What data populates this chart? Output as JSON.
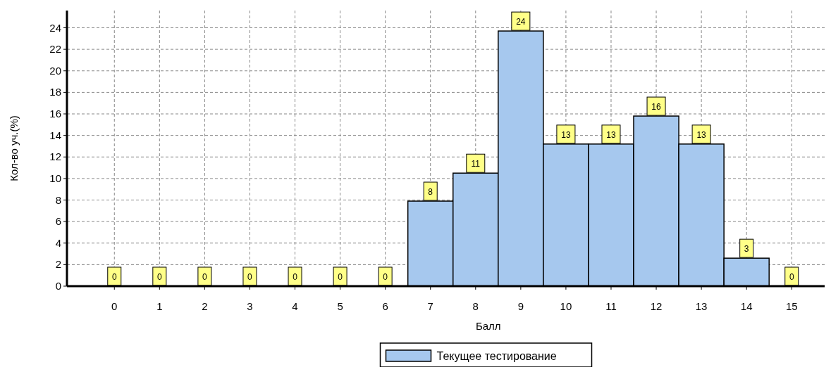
{
  "chart_data": {
    "type": "bar",
    "xlabel": "Балл",
    "ylabel": "Кол-во уч.(%)",
    "categories": [
      "0",
      "1",
      "2",
      "3",
      "4",
      "5",
      "6",
      "7",
      "8",
      "9",
      "10",
      "11",
      "12",
      "13",
      "14",
      "15"
    ],
    "series": [
      {
        "name": "Текущее тестирование",
        "color": "#a6c8ee",
        "values": [
          0,
          0,
          0,
          0,
          0,
          0,
          0,
          7.9,
          10.5,
          23.7,
          13.2,
          13.2,
          15.8,
          13.2,
          2.6,
          0
        ],
        "value_labels": [
          "0",
          "0",
          "0",
          "0",
          "0",
          "0",
          "0",
          "8",
          "11",
          "24",
          "13",
          "13",
          "16",
          "13",
          "3",
          "0"
        ]
      }
    ],
    "ylim": [
      0,
      25.6
    ],
    "yticks": [
      0,
      2,
      4,
      6,
      8,
      10,
      12,
      14,
      16,
      18,
      20,
      22,
      24
    ],
    "grid": true,
    "legend": "bottom"
  }
}
